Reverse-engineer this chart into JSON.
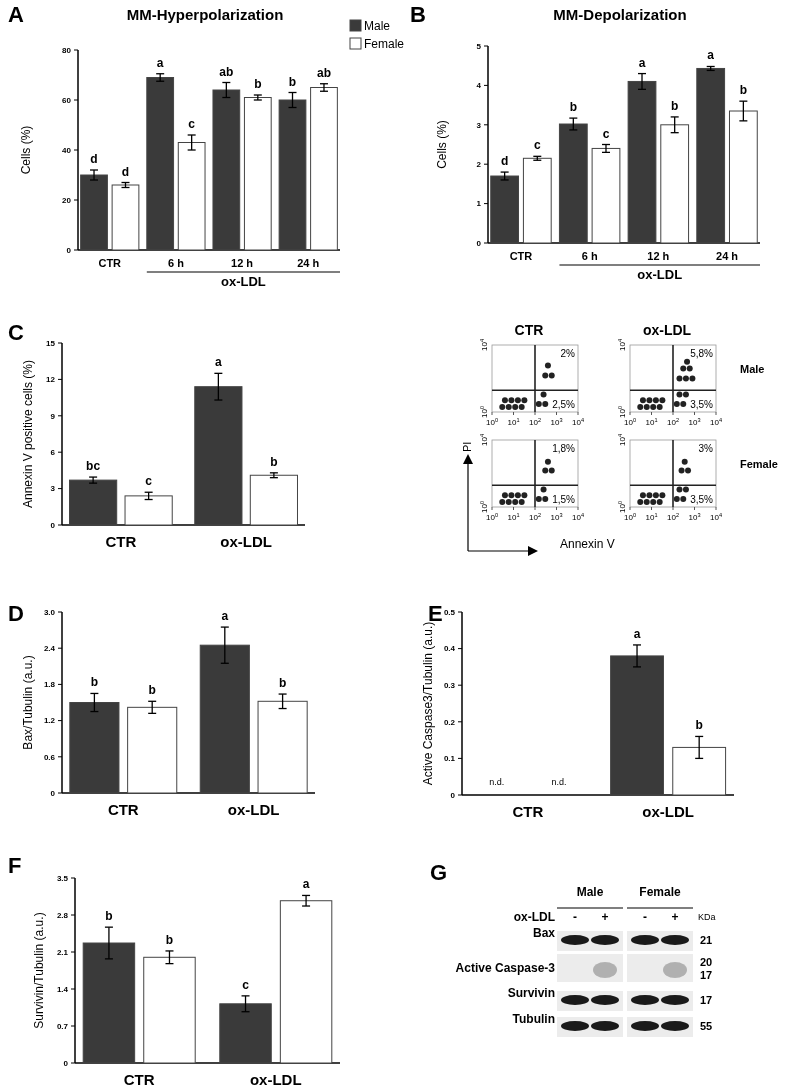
{
  "chart_data": [
    {
      "type": "bar",
      "title": "MM-Hyperpolarization",
      "ylabel": "Cells (%)",
      "categories": [
        "CTR",
        "6 h",
        "12 h",
        "24 h"
      ],
      "ylim": [
        0,
        80
      ],
      "yticks": [
        0,
        20,
        40,
        60,
        80
      ],
      "legend": "top right",
      "annotations": [
        "A",
        "ox-LDL"
      ],
      "series": [
        {
          "name": "Male",
          "color": "#3a3a3a",
          "values": [
            30,
            69,
            64,
            60
          ],
          "errors": [
            2,
            1.5,
            3,
            3
          ],
          "value_labels": [
            "d",
            "a",
            "ab",
            "b"
          ]
        },
        {
          "name": "Female",
          "color": "#ffffff",
          "values": [
            26,
            43,
            61,
            65
          ],
          "errors": [
            1,
            3,
            1,
            1.5
          ],
          "value_labels": [
            "d",
            "c",
            "b",
            "ab"
          ]
        }
      ]
    },
    {
      "type": "bar",
      "title": "MM-Depolarization",
      "ylabel": "Cells (%)",
      "categories": [
        "CTR",
        "6 h",
        "12 h",
        "24 h"
      ],
      "ylim": [
        0,
        5
      ],
      "yticks": [
        0,
        1,
        2,
        3,
        4,
        5
      ],
      "annotations": [
        "B",
        "ox-LDL"
      ],
      "series": [
        {
          "color": "#3a3a3a",
          "values": [
            1.7,
            3.02,
            4.1,
            4.43
          ],
          "errors": [
            0.1,
            0.15,
            0.2,
            0.05
          ],
          "value_labels": [
            "d",
            "b",
            "a",
            "a"
          ]
        },
        {
          "color": "#ffffff",
          "values": [
            2.15,
            2.4,
            3.0,
            3.35
          ],
          "errors": [
            0.05,
            0.1,
            0.2,
            0.25
          ],
          "value_labels": [
            "c",
            "c",
            "b",
            "b"
          ]
        }
      ]
    },
    {
      "type": "bar",
      "ylabel": "Annexin V positive cells (%)",
      "categories": [
        "CTR",
        "ox-LDL"
      ],
      "ylim": [
        0,
        15
      ],
      "yticks": [
        0,
        3,
        6,
        9,
        12,
        15
      ],
      "annotations": [
        "C"
      ],
      "series": [
        {
          "color": "#3a3a3a",
          "values": [
            3.7,
            11.4
          ],
          "errors": [
            0.25,
            1.1
          ],
          "value_labels": [
            "bc",
            "a"
          ]
        },
        {
          "color": "#ffffff",
          "values": [
            2.4,
            4.1
          ],
          "errors": [
            0.3,
            0.2
          ],
          "value_labels": [
            "c",
            "b"
          ]
        }
      ]
    },
    {
      "type": "scatter",
      "title": "CTR",
      "log": "xy",
      "marker": "circle",
      "xlim": [
        1,
        10000
      ],
      "ylim": [
        1,
        10000
      ],
      "xticks": [
        {
          "value": 1,
          "label": "10$^{0}$"
        },
        {
          "value": 10,
          "label": "10$^{1}$"
        },
        {
          "value": 100,
          "label": "10$^{2}$"
        },
        {
          "value": 1000,
          "label": "10$^{3}$"
        },
        {
          "value": 10000,
          "label": "10$^{4}$"
        }
      ],
      "yticks": [
        {
          "value": 1,
          "label": "10$^{0}$"
        },
        {
          "value": 10000,
          "label": "10$^{4}$"
        }
      ],
      "ref_lines": [
        {
          "axis": "x",
          "value": 100
        },
        {
          "axis": "y",
          "value": 20
        }
      ],
      "annotations": [
        "2%",
        "2,5%"
      ],
      "series": [
        {
          "color": "#222222",
          "x": [
            3,
            6,
            12,
            24,
            4,
            8,
            16,
            32,
            300,
            600,
            400,
            150,
            300,
            250
          ],
          "values": [
            2,
            2,
            2,
            2,
            5,
            5,
            5,
            5,
            150,
            150,
            600,
            3,
            3,
            11
          ]
        }
      ]
    },
    {
      "type": "scatter",
      "title": "ox-LDL",
      "log": "xy",
      "marker": "circle",
      "xlim": [
        1,
        10000
      ],
      "ylim": [
        1,
        10000
      ],
      "xticks": [
        {
          "value": 1,
          "label": "10$^{0}$"
        },
        {
          "value": 10,
          "label": "10$^{1}$"
        },
        {
          "value": 100,
          "label": "10$^{2}$"
        },
        {
          "value": 1000,
          "label": "10$^{3}$"
        },
        {
          "value": 10000,
          "label": "10$^{4}$"
        }
      ],
      "yticks": [
        {
          "value": 1,
          "label": "10$^{0}$"
        },
        {
          "value": 10000,
          "label": "10$^{4}$"
        }
      ],
      "ref_lines": [
        {
          "axis": "x",
          "value": 100
        },
        {
          "axis": "y",
          "value": 20
        }
      ],
      "annotations": [
        "5,8%",
        "3,5%",
        "Male"
      ],
      "series": [
        {
          "color": "#222222",
          "x": [
            3,
            6,
            12,
            24,
            4,
            8,
            16,
            32,
            200,
            400,
            800,
            300,
            600,
            450,
            150,
            300,
            200,
            400
          ],
          "values": [
            2,
            2,
            2,
            2,
            5,
            5,
            5,
            5,
            100,
            100,
            100,
            400,
            400,
            1000,
            3,
            3,
            11,
            11
          ]
        }
      ]
    },
    {
      "type": "scatter",
      "xlabel": "Annexin V",
      "ylabel": "PI",
      "log": "xy",
      "marker": "circle",
      "xlim": [
        1,
        10000
      ],
      "ylim": [
        1,
        10000
      ],
      "xticks": [
        {
          "value": 1,
          "label": "10$^{0}$"
        },
        {
          "value": 10,
          "label": "10$^{1}$"
        },
        {
          "value": 100,
          "label": "10$^{2}$"
        },
        {
          "value": 1000,
          "label": "10$^{3}$"
        },
        {
          "value": 10000,
          "label": "10$^{4}$"
        }
      ],
      "yticks": [
        {
          "value": 1,
          "label": "10$^{0}$"
        },
        {
          "value": 10000,
          "label": "10$^{4}$"
        }
      ],
      "ref_lines": [
        {
          "axis": "x",
          "value": 100
        },
        {
          "axis": "y",
          "value": 20
        }
      ],
      "annotations": [
        "1,8%",
        "1,5%"
      ],
      "series": [
        {
          "color": "#222222",
          "x": [
            3,
            6,
            12,
            24,
            4,
            8,
            16,
            32,
            300,
            600,
            400,
            150,
            300,
            250
          ],
          "values": [
            2,
            2,
            2,
            2,
            5,
            5,
            5,
            5,
            150,
            150,
            500,
            3,
            3,
            11
          ]
        }
      ]
    },
    {
      "type": "scatter",
      "log": "xy",
      "marker": "circle",
      "xlim": [
        1,
        10000
      ],
      "ylim": [
        1,
        10000
      ],
      "xticks": [
        {
          "value": 1,
          "label": "10$^{0}$"
        },
        {
          "value": 10,
          "label": "10$^{1}$"
        },
        {
          "value": 100,
          "label": "10$^{2}$"
        },
        {
          "value": 1000,
          "label": "10$^{3}$"
        },
        {
          "value": 10000,
          "label": "10$^{4}$"
        }
      ],
      "yticks": [
        {
          "value": 1,
          "label": "10$^{0}$"
        },
        {
          "value": 10000,
          "label": "10$^{4}$"
        }
      ],
      "ref_lines": [
        {
          "axis": "x",
          "value": 100
        },
        {
          "axis": "y",
          "value": 20
        }
      ],
      "annotations": [
        "3%",
        "3,5%",
        "Female"
      ],
      "series": [
        {
          "color": "#222222",
          "x": [
            3,
            6,
            12,
            24,
            4,
            8,
            16,
            32,
            250,
            500,
            350,
            150,
            300,
            200,
            400
          ],
          "values": [
            2,
            2,
            2,
            2,
            5,
            5,
            5,
            5,
            150,
            150,
            500,
            3,
            3,
            11,
            11
          ]
        }
      ]
    },
    {
      "type": "bar",
      "ylabel": "Bax/Tubulin (a.u.)",
      "categories": [
        "CTR",
        "ox-LDL"
      ],
      "ylim": [
        0,
        3
      ],
      "yticks": [
        0,
        0.6,
        1.2,
        1.8,
        2.4,
        {
          "value": 3,
          "label": "3.0"
        }
      ],
      "annotations": [
        "D"
      ],
      "series": [
        {
          "color": "#3a3a3a",
          "values": [
            1.5,
            2.45
          ],
          "errors": [
            0.15,
            0.3
          ],
          "value_labels": [
            "b",
            "a"
          ]
        },
        {
          "color": "#ffffff",
          "values": [
            1.42,
            1.52
          ],
          "errors": [
            0.1,
            0.12
          ],
          "value_labels": [
            "b",
            "b"
          ]
        }
      ]
    },
    {
      "type": "bar",
      "ylabel": "Active Caspase3/Tubulin (a.u.)",
      "categories": [
        "CTR",
        "ox-LDL"
      ],
      "ylim": [
        0,
        0.5
      ],
      "yticks": [
        0,
        0.1,
        0.2,
        0.3,
        0.4,
        0.5
      ],
      "annotations": [
        "E"
      ],
      "series": [
        {
          "color": "#3a3a3a",
          "values": [
            null,
            0.38
          ],
          "errors": [
            null,
            0.03
          ],
          "value_labels": [
            "n.d.",
            "a"
          ]
        },
        {
          "color": "#ffffff",
          "values": [
            null,
            0.13
          ],
          "errors": [
            null,
            0.03
          ],
          "value_labels": [
            "n.d.",
            "b"
          ]
        }
      ]
    },
    {
      "type": "bar",
      "ylabel": "Survivin/Tubulin (a.u.)",
      "categories": [
        "CTR",
        "ox-LDL"
      ],
      "ylim": [
        0,
        3.5
      ],
      "yticks": [
        0,
        0.7,
        1.4,
        2.1,
        2.8,
        3.5
      ],
      "annotations": [
        "F"
      ],
      "series": [
        {
          "color": "#3a3a3a",
          "values": [
            2.27,
            1.12
          ],
          "errors": [
            0.3,
            0.15
          ],
          "value_labels": [
            "b",
            "c"
          ]
        },
        {
          "color": "#ffffff",
          "values": [
            2.0,
            3.07
          ],
          "errors": [
            0.12,
            0.1
          ],
          "value_labels": [
            "b",
            "a"
          ]
        }
      ]
    },
    {
      "type": "other",
      "categories": [
        "-",
        "+",
        "-",
        "+"
      ],
      "y_categories": [
        "Bax",
        "Active Caspase-3",
        "Survivin",
        "Tubulin"
      ],
      "y2_categories": [
        "21",
        "20\n17",
        "17",
        "55"
      ],
      "xlabel": "ox-LDL",
      "y2label": "KDa",
      "annotations": [
        "G",
        "Male",
        "Female"
      ]
    }
  ]
}
